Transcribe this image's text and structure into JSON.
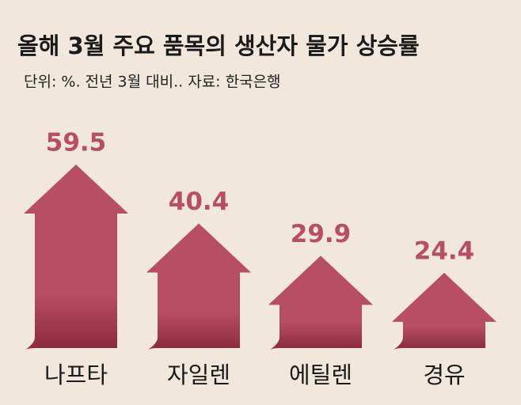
{
  "chart_data": {
    "type": "bar",
    "title": "올해 3월 주요 품목의 생산자 물가 상승률",
    "subtitle": "단위: %. 전년 3월 대비.. 자료: 한국은행",
    "categories": [
      "나프타",
      "자일렌",
      "에틸렌",
      "경유"
    ],
    "values": [
      59.5,
      40.4,
      29.9,
      24.4
    ],
    "color": "#b84e63"
  }
}
